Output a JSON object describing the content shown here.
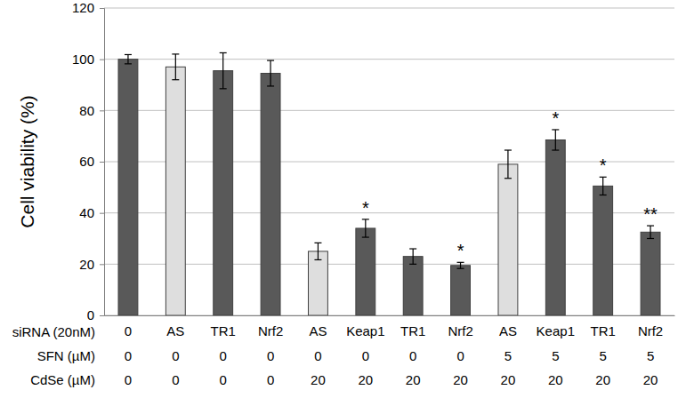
{
  "chart_data": {
    "type": "bar",
    "y_label": "Cell viability (%)",
    "row_labels": [
      "siRNA (20nM)",
      "SFN (µM)",
      "CdSe (µM)"
    ],
    "categories": [
      "0",
      "AS",
      "TR1",
      "Nrf2",
      "AS",
      "Keap1",
      "TR1",
      "Nrf2",
      "AS",
      "Keap1",
      "TR1",
      "Nrf2"
    ],
    "sfn": [
      0,
      0,
      0,
      0,
      0,
      0,
      0,
      0,
      5,
      5,
      5,
      5
    ],
    "cdse": [
      0,
      0,
      0,
      0,
      20,
      20,
      20,
      20,
      20,
      20,
      20,
      20
    ],
    "values": [
      100,
      97,
      95.5,
      94.5,
      25,
      34,
      23,
      19.5,
      59,
      68.5,
      50.5,
      32.5
    ],
    "errors": [
      1.8,
      5,
      7,
      5,
      3.3,
      3.5,
      3,
      1.2,
      5.5,
      4,
      3.5,
      2.5
    ],
    "significance": [
      null,
      null,
      null,
      null,
      null,
      "*",
      null,
      "*",
      null,
      "*",
      "*",
      "**"
    ],
    "colors": [
      "#595959",
      "#dedede",
      "#595959",
      "#595959",
      "#dedede",
      "#595959",
      "#595959",
      "#595959",
      "#dedede",
      "#595959",
      "#595959",
      "#595959"
    ],
    "ylim": [
      0,
      120
    ],
    "yticks": [
      0,
      20,
      40,
      60,
      80,
      100,
      120
    ],
    "grid": true
  }
}
